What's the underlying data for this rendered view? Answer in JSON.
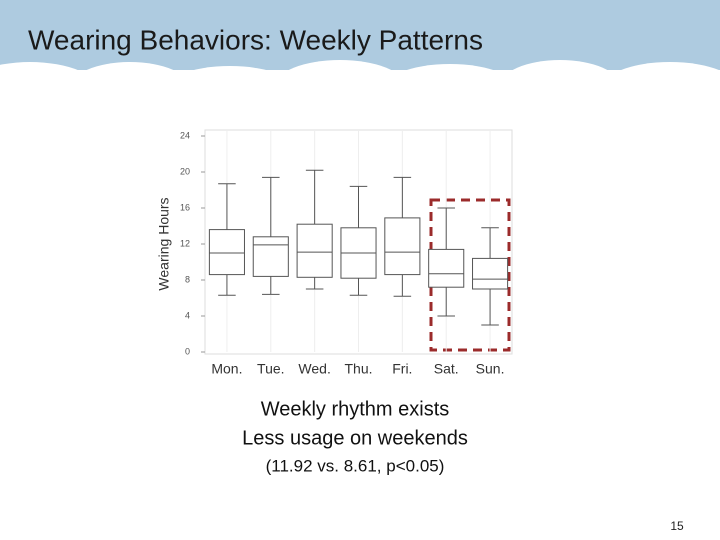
{
  "chart_data": {
    "type": "box",
    "title": "Wearing Behaviors: Weekly Patterns",
    "y_label": "Wearing Hours",
    "categories": [
      "Mon.",
      "Tue.",
      "Wed.",
      "Thu.",
      "Fri.",
      "Sat.",
      "Sun."
    ],
    "boxes": [
      {
        "min": 6.3,
        "q1": 8.6,
        "median": 11,
        "q3": 13.6,
        "max": 18.7
      },
      {
        "min": 6.4,
        "q1": 8.4,
        "median": 11.9,
        "q3": 12.8,
        "max": 19.4
      },
      {
        "min": 7,
        "q1": 8.3,
        "median": 11.1,
        "q3": 14.2,
        "max": 20.2
      },
      {
        "min": 6.3,
        "q1": 8.2,
        "median": 11,
        "q3": 13.8,
        "max": 18.4
      },
      {
        "min": 6.2,
        "q1": 8.6,
        "median": 11.1,
        "q3": 14.9,
        "max": 19.4
      },
      {
        "min": 4,
        "q1": 7.2,
        "median": 8.7,
        "q3": 11.4,
        "max": 16
      },
      {
        "min": 3,
        "q1": 7,
        "median": 8.1,
        "q3": 10.4,
        "max": 13.8
      }
    ],
    "color": "#555555",
    "ylim": [
      0,
      24
    ],
    "yticks": [
      0,
      4,
      8,
      12,
      16,
      20,
      24
    ],
    "grid": true
  },
  "slide": {
    "notes": [
      "Weekly rhythm exists",
      "Less usage on weekends",
      "(11.92 vs. 8.61, p<0.05)"
    ],
    "page_number": "15"
  }
}
